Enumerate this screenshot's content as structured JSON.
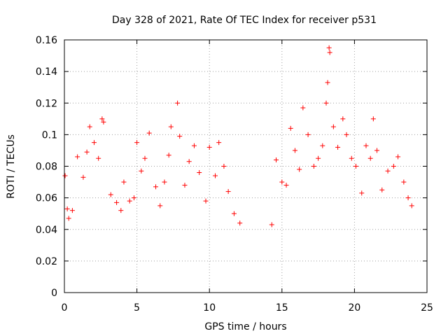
{
  "chart_data": {
    "type": "scatter",
    "title": "Day 328 of 2021, Rate Of TEC Index for receiver p531",
    "xlabel": "GPS time / hours",
    "ylabel": "ROTI / TECUs",
    "xlim": [
      0,
      25
    ],
    "ylim": [
      0,
      0.16
    ],
    "x_ticks": [
      "0",
      "5",
      "10",
      "15",
      "20",
      "25"
    ],
    "y_ticks": [
      "0",
      "0.02",
      "0.04",
      "0.06",
      "0.08",
      "0.1",
      "0.12",
      "0.14",
      "0.16"
    ],
    "grid": true,
    "marker": "+",
    "color": "#ff0000",
    "observation_gap_hours": [
      12.3,
      14.2
    ],
    "series": [
      {
        "name": "",
        "points": [
          [
            0.05,
            0.074
          ],
          [
            0.2,
            0.053
          ],
          [
            0.3,
            0.047
          ],
          [
            0.55,
            0.052
          ],
          [
            0.9,
            0.086
          ],
          [
            1.3,
            0.073
          ],
          [
            1.55,
            0.089
          ],
          [
            1.75,
            0.105
          ],
          [
            2.05,
            0.095
          ],
          [
            2.35,
            0.085
          ],
          [
            2.6,
            0.11
          ],
          [
            2.7,
            0.108
          ],
          [
            3.2,
            0.062
          ],
          [
            3.6,
            0.057
          ],
          [
            3.9,
            0.052
          ],
          [
            4.1,
            0.07
          ],
          [
            4.5,
            0.058
          ],
          [
            4.8,
            0.06
          ],
          [
            5.0,
            0.095
          ],
          [
            5.3,
            0.077
          ],
          [
            5.55,
            0.085
          ],
          [
            5.85,
            0.101
          ],
          [
            6.3,
            0.067
          ],
          [
            6.6,
            0.055
          ],
          [
            6.9,
            0.07
          ],
          [
            7.2,
            0.087
          ],
          [
            7.35,
            0.105
          ],
          [
            7.8,
            0.12
          ],
          [
            7.95,
            0.099
          ],
          [
            8.3,
            0.068
          ],
          [
            8.6,
            0.083
          ],
          [
            8.95,
            0.093
          ],
          [
            9.3,
            0.076
          ],
          [
            9.75,
            0.058
          ],
          [
            10.0,
            0.092
          ],
          [
            10.4,
            0.074
          ],
          [
            10.65,
            0.095
          ],
          [
            11.0,
            0.08
          ],
          [
            11.3,
            0.064
          ],
          [
            11.7,
            0.05
          ],
          [
            12.1,
            0.044
          ],
          [
            14.3,
            0.043
          ],
          [
            14.6,
            0.084
          ],
          [
            15.0,
            0.07
          ],
          [
            15.3,
            0.068
          ],
          [
            15.6,
            0.104
          ],
          [
            15.9,
            0.09
          ],
          [
            16.2,
            0.078
          ],
          [
            16.45,
            0.117
          ],
          [
            16.8,
            0.1
          ],
          [
            17.2,
            0.08
          ],
          [
            17.5,
            0.085
          ],
          [
            17.8,
            0.093
          ],
          [
            18.05,
            0.12
          ],
          [
            18.15,
            0.133
          ],
          [
            18.25,
            0.155
          ],
          [
            18.3,
            0.152
          ],
          [
            18.55,
            0.105
          ],
          [
            18.85,
            0.092
          ],
          [
            19.2,
            0.11
          ],
          [
            19.45,
            0.1
          ],
          [
            19.8,
            0.085
          ],
          [
            20.1,
            0.08
          ],
          [
            20.5,
            0.063
          ],
          [
            20.8,
            0.093
          ],
          [
            21.1,
            0.085
          ],
          [
            21.3,
            0.11
          ],
          [
            21.55,
            0.09
          ],
          [
            21.9,
            0.065
          ],
          [
            22.3,
            0.077
          ],
          [
            22.7,
            0.08
          ],
          [
            23.0,
            0.086
          ],
          [
            23.4,
            0.07
          ],
          [
            23.7,
            0.06
          ],
          [
            23.95,
            0.055
          ]
        ]
      }
    ]
  }
}
